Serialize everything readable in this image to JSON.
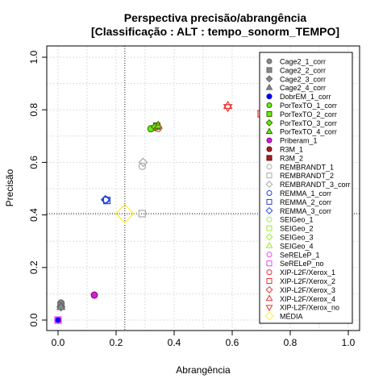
{
  "chart_data": {
    "type": "scatter",
    "title": "Perspectiva precisão/abrangência",
    "subtitle": "[Classificação : ALT : tempo_sonorm_TEMPO]",
    "xlabel": "Abrangência",
    "ylabel": "Precisão",
    "xlim": [
      0,
      1
    ],
    "ylim": [
      0,
      1
    ],
    "x_ticks": [
      "0.0",
      "0.2",
      "0.4",
      "0.6",
      "0.8",
      "1.0"
    ],
    "y_ticks": [
      "0.0",
      "0.2",
      "0.4",
      "0.6",
      "0.8",
      "1.0"
    ],
    "grid": true,
    "legend_position": "right",
    "reference_lines": {
      "x": 0.23,
      "y": 0.405
    },
    "series": [
      {
        "name": "Cage2_1_corr",
        "shape": "circle",
        "color": "#666666",
        "fill": "#888888",
        "x": 0.01,
        "y": 0.065
      },
      {
        "name": "Cage2_2_corr",
        "shape": "square",
        "color": "#666666",
        "fill": "#888888",
        "x": 0.01,
        "y": 0.055
      },
      {
        "name": "Cage2_3_corr",
        "shape": "diamond",
        "color": "#666666",
        "fill": "#888888",
        "x": 0.01,
        "y": 0.05
      },
      {
        "name": "Cage2_4_corr",
        "shape": "triangle",
        "color": "#666666",
        "fill": "#888888",
        "x": 0.01,
        "y": 0.05
      },
      {
        "name": "DobrEM_1_corr",
        "shape": "circle",
        "color": "#0000cc",
        "fill": "#0000ff",
        "x": 0.0,
        "y": 0.0
      },
      {
        "name": "PorTexTO_1_corr",
        "shape": "circle",
        "color": "#336600",
        "fill": "#66ee11",
        "x": 0.32,
        "y": 0.728
      },
      {
        "name": "PorTexTO_2_corr",
        "shape": "square",
        "color": "#336600",
        "fill": "#66ee11",
        "x": 0.34,
        "y": 0.738
      },
      {
        "name": "PorTexTO_3_corr",
        "shape": "diamond",
        "color": "#336600",
        "fill": "#66ee11",
        "x": 0.335,
        "y": 0.735
      },
      {
        "name": "PorTexTO_4_corr",
        "shape": "triangle",
        "color": "#336600",
        "fill": "#66ee11",
        "x": 0.345,
        "y": 0.74
      },
      {
        "name": "Priberam_1",
        "shape": "circle",
        "color": "#880088",
        "fill": "#cc22cc",
        "x": 0.125,
        "y": 0.095
      },
      {
        "name": "R3M_1",
        "shape": "circle",
        "color": "#660000",
        "fill": "#aa2222",
        "x": null,
        "y": null
      },
      {
        "name": "R3M_2",
        "shape": "square",
        "color": "#660000",
        "fill": "#aa2222",
        "x": null,
        "y": null
      },
      {
        "name": "REMBRANDT_1",
        "shape": "circle",
        "color": "#aaaaaa",
        "fill": "none",
        "x": 0.29,
        "y": 0.585
      },
      {
        "name": "REMBRANDT_2",
        "shape": "square",
        "color": "#aaaaaa",
        "fill": "none",
        "x": 0.29,
        "y": 0.405
      },
      {
        "name": "REMBRANDT_3_corr",
        "shape": "diamond",
        "color": "#aaaaaa",
        "fill": "none",
        "x": 0.293,
        "y": 0.6
      },
      {
        "name": "REMMA_1_corr",
        "shape": "circle",
        "color": "#2244dd",
        "fill": "none",
        "x": 0.165,
        "y": 0.458
      },
      {
        "name": "REMMA_2_corr",
        "shape": "square",
        "color": "#2244dd",
        "fill": "none",
        "x": 0.168,
        "y": 0.455
      },
      {
        "name": "REMMA_3_corr",
        "shape": "diamond",
        "color": "#2244dd",
        "fill": "none",
        "x": 0.163,
        "y": 0.458
      },
      {
        "name": "SEIGeo_1",
        "shape": "circle",
        "color": "#99ee33",
        "fill": "none",
        "x": null,
        "y": null
      },
      {
        "name": "SEIGeo_2",
        "shape": "square",
        "color": "#99ee33",
        "fill": "none",
        "x": null,
        "y": null
      },
      {
        "name": "SEIGeo_3",
        "shape": "diamond",
        "color": "#99ee33",
        "fill": "none",
        "x": null,
        "y": null
      },
      {
        "name": "SEIGeo_4",
        "shape": "triangle",
        "color": "#99ee33",
        "fill": "none",
        "x": null,
        "y": null
      },
      {
        "name": "SeRELeP_1",
        "shape": "circle",
        "color": "#ee44ee",
        "fill": "none",
        "x": 0.0,
        "y": 0.0
      },
      {
        "name": "SeRELeP_no",
        "shape": "square",
        "color": "#ee44ee",
        "fill": "none",
        "x": 0.0,
        "y": 0.0
      },
      {
        "name": "XIP-L2F/Xerox_1",
        "shape": "circle",
        "color": "#ee3333",
        "fill": "none",
        "x": 0.345,
        "y": 0.73
      },
      {
        "name": "XIP-L2F/Xerox_2",
        "shape": "square",
        "color": "#ee3333",
        "fill": "none",
        "x": 0.7,
        "y": 0.785
      },
      {
        "name": "XIP-L2F/Xerox_3",
        "shape": "diamond",
        "color": "#ee3333",
        "fill": "none",
        "x": null,
        "y": null
      },
      {
        "name": "XIP-L2F/Xerox_4",
        "shape": "triangle",
        "color": "#ee3333",
        "fill": "none",
        "x": 0.585,
        "y": 0.815
      },
      {
        "name": "XIP-L2F/Xerox_no",
        "shape": "triangle-down",
        "color": "#ee3333",
        "fill": "none",
        "x": 0.585,
        "y": 0.81
      },
      {
        "name": "MÉDIA",
        "shape": "diamond",
        "color": "#ffee33",
        "fill": "none",
        "x": 0.23,
        "y": 0.405,
        "large": true
      }
    ]
  }
}
